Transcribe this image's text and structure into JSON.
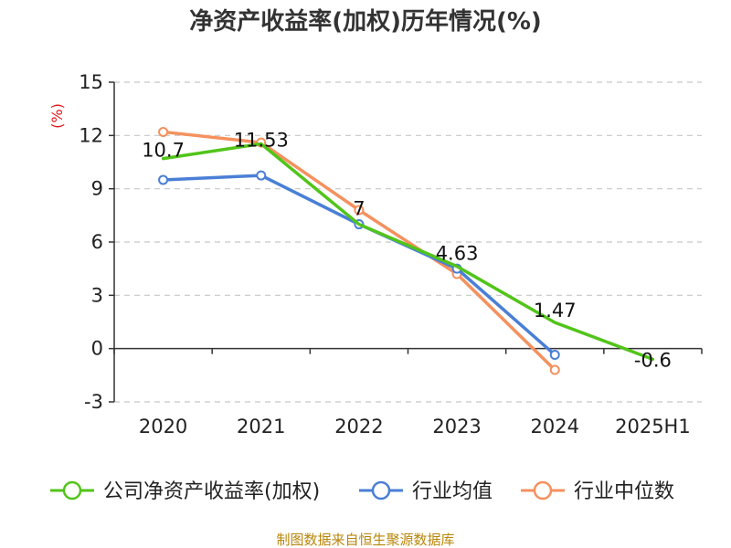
{
  "chart_data": {
    "type": "line",
    "title": "净资产收益率(加权)历年情况(%)",
    "ylabel": "(%)",
    "xlabel": "",
    "categories": [
      "2020",
      "2021",
      "2022",
      "2023",
      "2024",
      "2025H1"
    ],
    "ylim": [
      -3,
      15
    ],
    "yticks": [
      -3,
      0,
      3,
      6,
      9,
      12,
      15
    ],
    "grid": true,
    "legend_position": "bottom",
    "series": [
      {
        "name": "公司净资产收益率(加权)",
        "color": "#52c41a",
        "values": [
          10.7,
          11.53,
          7,
          4.63,
          1.47,
          -0.6
        ],
        "labels": [
          "10.7",
          "11.53",
          "7",
          "4.63",
          "1.47",
          "-0.6"
        ]
      },
      {
        "name": "行业均值",
        "color": "#4a7fd6",
        "values": [
          9.5,
          9.75,
          7.0,
          4.5,
          -0.35,
          null
        ],
        "labels": []
      },
      {
        "name": "行业中位数",
        "color": "#f4915e",
        "values": [
          12.2,
          11.6,
          7.8,
          4.2,
          -1.2,
          null
        ],
        "labels": []
      }
    ]
  },
  "source": "制图数据来自恒生聚源数据库"
}
